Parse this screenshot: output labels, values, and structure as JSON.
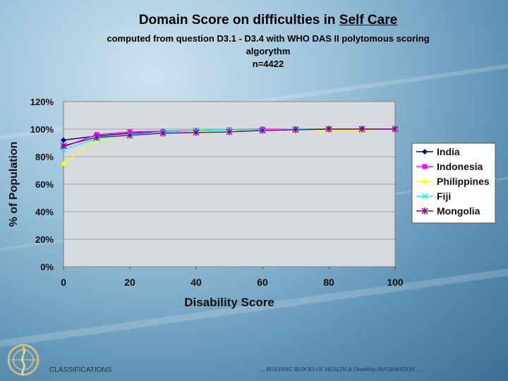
{
  "header": {
    "title_prefix": "Domain Score on difficulties in ",
    "title_underlined": "Self Care ",
    "subtitle_line1": "computed from question D3.1 - D3.4 with WHO DAS II polytomous scoring",
    "subtitle_line2": "algorythm",
    "subtitle_line3": "n=4422"
  },
  "footer": {
    "left": "CLASSIFICATIONS",
    "right": "… BUILDING BLOCKS OF HEALTH & Disability INFORMATION …"
  },
  "chart_data": {
    "type": "line",
    "title": "Domain Score on difficulties in Self Care",
    "xlabel": "Disability Score",
    "ylabel": "% of Population",
    "xlim": [
      0,
      100
    ],
    "ylim": [
      0,
      120
    ],
    "x_ticks": [
      "0",
      "20",
      "40",
      "60",
      "80",
      "100"
    ],
    "y_ticks": [
      "0%",
      "20%",
      "40%",
      "60%",
      "80%",
      "100%",
      "120%"
    ],
    "grid": "horizontal",
    "legend_position": "right",
    "series": [
      {
        "name": "India",
        "color": "#000080",
        "marker": "diamond",
        "x": [
          0,
          10,
          20,
          30,
          40,
          50,
          60,
          70,
          80,
          90,
          100
        ],
        "y": [
          92,
          95,
          97,
          98,
          99,
          99,
          99.5,
          100,
          100,
          100,
          100
        ]
      },
      {
        "name": "Indonesia",
        "color": "#ff00ff",
        "marker": "square",
        "x": [
          0,
          10,
          20,
          30,
          40,
          50,
          60,
          70,
          80,
          90,
          100
        ],
        "y": [
          87,
          96,
          98,
          98.5,
          99,
          99.5,
          100,
          100,
          100,
          100,
          100
        ]
      },
      {
        "name": "Philippines",
        "color": "#ffff00",
        "marker": "triangle",
        "x": [
          0,
          10,
          20,
          30,
          40,
          50,
          60,
          70,
          80,
          90,
          100
        ],
        "y": [
          75,
          92,
          96,
          97,
          98,
          99,
          99.5,
          99.5,
          99.5,
          99.5,
          100
        ]
      },
      {
        "name": "Fiji",
        "color": "#00ffff",
        "marker": "x",
        "x": [
          0,
          10,
          20,
          30,
          40,
          50,
          60,
          70,
          80,
          90,
          100
        ],
        "y": [
          85,
          93,
          96,
          98,
          99,
          99.5,
          99.5,
          100,
          100,
          100,
          100
        ]
      },
      {
        "name": "Mongolia",
        "color": "#800080",
        "marker": "star",
        "x": [
          0,
          10,
          20,
          30,
          40,
          50,
          60,
          70,
          80,
          90,
          100
        ],
        "y": [
          88,
          94,
          95.5,
          97,
          97.5,
          98,
          99,
          99.5,
          100,
          100,
          100
        ]
      }
    ]
  }
}
